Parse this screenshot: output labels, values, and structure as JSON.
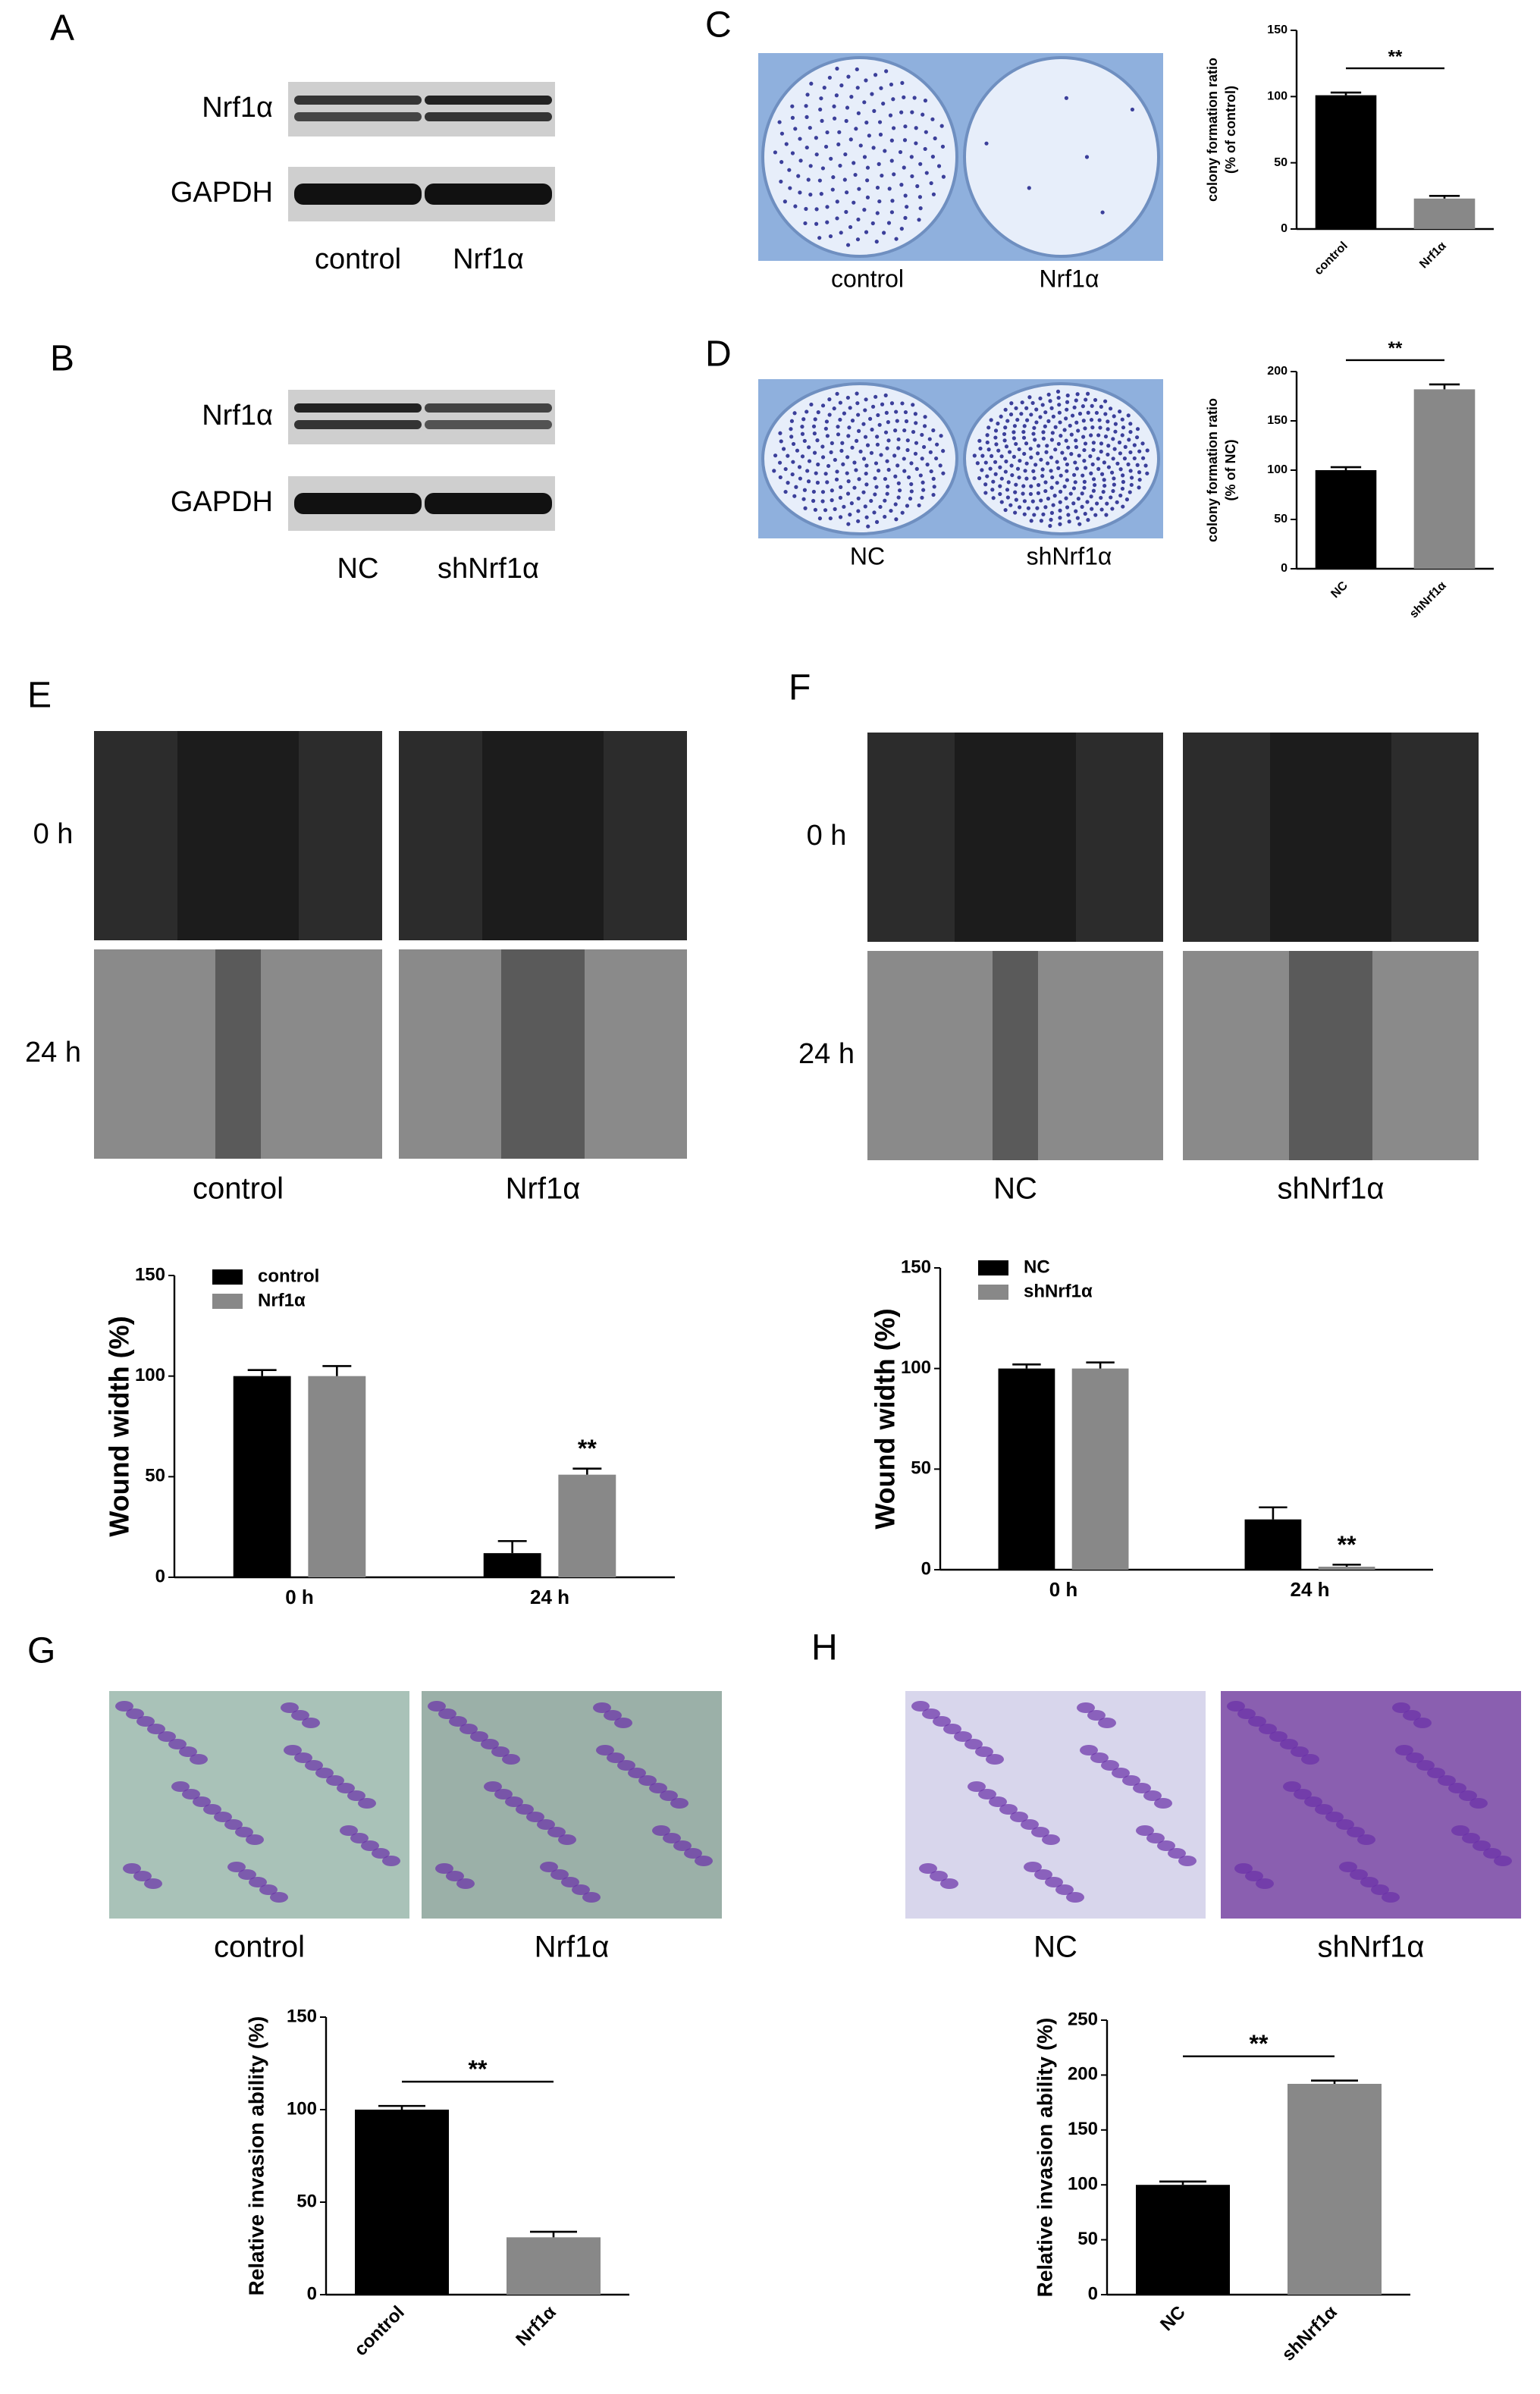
{
  "panels": {
    "A": {
      "label": "A",
      "rows": [
        "Nrf1α",
        "GAPDH"
      ],
      "lanes": [
        "control",
        "Nrf1α"
      ]
    },
    "B": {
      "label": "B",
      "rows": [
        "Nrf1α",
        "GAPDH"
      ],
      "lanes": [
        "NC",
        "shNrf1α"
      ]
    },
    "C": {
      "label": "C",
      "lanes": [
        "control",
        "Nrf1α"
      ]
    },
    "D": {
      "label": "D",
      "lanes": [
        "NC",
        "shNrf1α"
      ]
    },
    "E": {
      "label": "E",
      "times": [
        "0 h",
        "24 h"
      ],
      "lanes": [
        "control",
        "Nrf1α"
      ]
    },
    "F": {
      "label": "F",
      "times": [
        "0 h",
        "24 h"
      ],
      "lanes": [
        "NC",
        "shNrf1α"
      ]
    },
    "G": {
      "label": "G",
      "lanes": [
        "control",
        "Nrf1α"
      ]
    },
    "H": {
      "label": "H",
      "lanes": [
        "NC",
        "shNrf1α"
      ]
    }
  },
  "chart_data": [
    {
      "type": "bar",
      "ylabel": [
        "colony formation ratio",
        "(% of control)"
      ],
      "categories": [
        "control",
        "Nrf1α"
      ],
      "values": [
        101,
        23
      ],
      "errors": [
        2,
        2
      ],
      "colors": [
        "#000000",
        "#888888"
      ],
      "ylim": [
        0,
        150
      ],
      "yticks": [
        0,
        50,
        100,
        150
      ],
      "annotation": "**"
    },
    {
      "type": "bar",
      "ylabel": [
        "colony formation ratio",
        "(% of NC)"
      ],
      "categories": [
        "NC",
        "shNrf1α"
      ],
      "values": [
        100,
        182
      ],
      "errors": [
        3,
        5
      ],
      "colors": [
        "#000000",
        "#888888"
      ],
      "ylim": [
        0,
        200
      ],
      "yticks": [
        0,
        50,
        100,
        150,
        200
      ],
      "annotation": "**"
    },
    {
      "type": "grouped_bar",
      "ylabel": "Wound width (%)",
      "categories": [
        "0 h",
        "24 h"
      ],
      "series": [
        {
          "name": "control",
          "color": "#000000",
          "values": [
            100,
            12
          ],
          "errors": [
            3,
            6
          ]
        },
        {
          "name": "Nrf1α",
          "color": "#888888",
          "values": [
            100,
            51
          ],
          "errors": [
            5,
            3
          ]
        }
      ],
      "ylim": [
        0,
        150
      ],
      "yticks": [
        0,
        50,
        100,
        150
      ],
      "annotation": "**",
      "legend": "upper left"
    },
    {
      "type": "grouped_bar",
      "ylabel": "Wound width (%)",
      "categories": [
        "0 h",
        "24 h"
      ],
      "series": [
        {
          "name": "NC",
          "color": "#000000",
          "values": [
            100,
            25
          ],
          "errors": [
            2,
            6
          ]
        },
        {
          "name": "shNrf1α",
          "color": "#888888",
          "values": [
            100,
            1.5
          ],
          "errors": [
            3,
            1
          ]
        }
      ],
      "ylim": [
        0,
        150
      ],
      "yticks": [
        0,
        50,
        100,
        150
      ],
      "annotation": "**",
      "legend": "upper left"
    },
    {
      "type": "bar",
      "ylabel": "Relative invasion ability (%)",
      "categories": [
        "control",
        "Nrf1α"
      ],
      "values": [
        100,
        31
      ],
      "errors": [
        2,
        3
      ],
      "colors": [
        "#000000",
        "#888888"
      ],
      "ylim": [
        0,
        150
      ],
      "yticks": [
        0,
        50,
        100,
        150
      ],
      "annotation": "**"
    },
    {
      "type": "bar",
      "ylabel": "Relative invasion ability (%)",
      "categories": [
        "NC",
        "shNrf1α"
      ],
      "values": [
        100,
        192
      ],
      "errors": [
        3,
        3
      ],
      "colors": [
        "#000000",
        "#888888"
      ],
      "ylim": [
        0,
        250
      ],
      "yticks": [
        0,
        50,
        100,
        150,
        200,
        250
      ],
      "annotation": "**"
    }
  ]
}
